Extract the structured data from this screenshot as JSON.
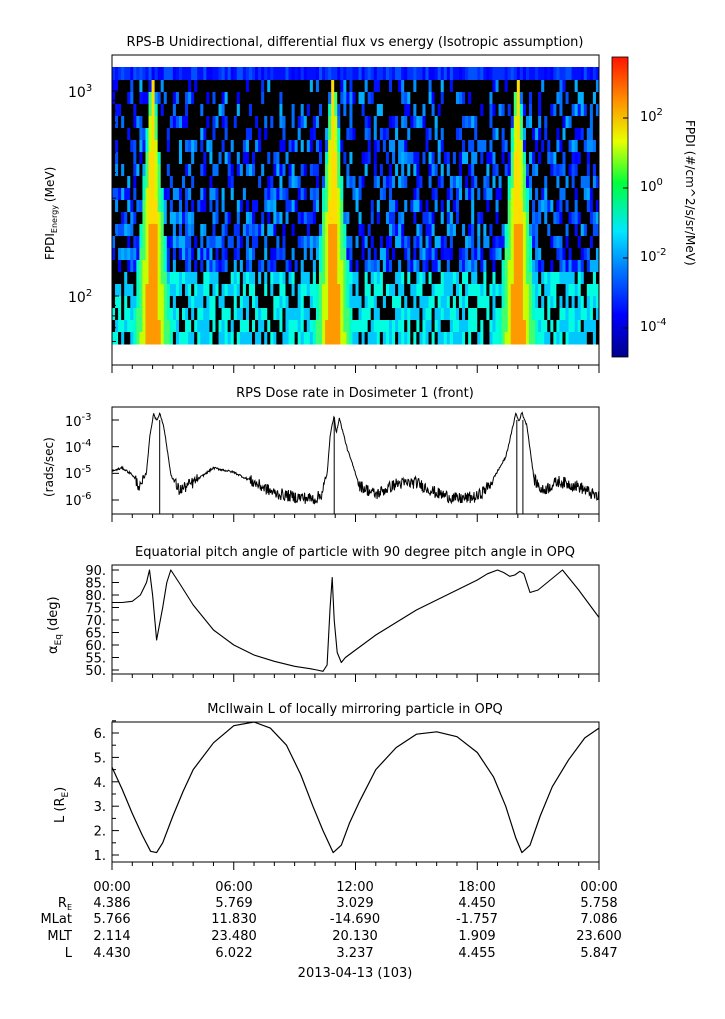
{
  "chart_data": [
    {
      "type": "heatmap",
      "title": "RPS-B  Unidirectional, differential flux vs energy (Isotropic assumption)",
      "ylabel": "FPDI",
      "ylabel_sub": "Energy",
      "ylabel_unit": "(MeV)",
      "yscale": "log",
      "ylim": [
        55,
        1400
      ],
      "y_ticks": [
        {
          "base": "10",
          "exp": "3",
          "value": 1000
        },
        {
          "base": "10",
          "exp": "2",
          "value": 100
        }
      ],
      "hot_bands_hours": [
        2.0,
        10.9,
        20.0
      ],
      "colorbar": {
        "label": "FPDI (#/cm^2/s/sr/MeV)",
        "scale": "log",
        "range": [
          1e-05,
          2000
        ],
        "ticks": [
          {
            "base": "10",
            "exp": "2"
          },
          {
            "base": "10",
            "exp": "0"
          },
          {
            "base": "10",
            "exp": "-2"
          },
          {
            "base": "10",
            "exp": "-4"
          }
        ],
        "colors": [
          "#0000a0",
          "#0000ff",
          "#0088ff",
          "#00ffff",
          "#00ff44",
          "#ffff00",
          "#ff8800",
          "#ff0000"
        ]
      }
    },
    {
      "type": "line",
      "title": "RPS  Dose rate in Dosimeter 1 (front)",
      "ylabel": "(rads/sec)",
      "yscale": "log",
      "ylim": [
        5e-07,
        0.002
      ],
      "y_ticks": [
        {
          "base": "10",
          "exp": "-3"
        },
        {
          "base": "10",
          "exp": "-4"
        },
        {
          "base": "10",
          "exp": "-5"
        },
        {
          "base": "10",
          "exp": "-6"
        }
      ],
      "x_hours": [
        0,
        0.5,
        1.0,
        1.4,
        1.7,
        1.85,
        2.05,
        2.2,
        2.35,
        2.55,
        2.9,
        3.3,
        4.0,
        5.0,
        6.0,
        7.0,
        8.0,
        9.0,
        9.5,
        10.0,
        10.3,
        10.6,
        10.75,
        10.95,
        11.05,
        11.2,
        11.6,
        12.2,
        13.0,
        14.0,
        15.0,
        16.0,
        17.0,
        18.0,
        18.6,
        19.0,
        19.4,
        19.65,
        19.9,
        20.05,
        20.2,
        20.45,
        20.8,
        21.2,
        22.0,
        23.0,
        24.0
      ],
      "values": [
        1.2e-05,
        1.6e-05,
        9e-06,
        2.8e-06,
        1.1e-05,
        0.0002,
        0.0018,
        0.0009,
        0.0018,
        0.0006,
        9e-06,
        2.3e-06,
        4.5e-06,
        1.6e-05,
        1.1e-05,
        4.5e-06,
        1.8e-06,
        1.3e-06,
        1.2e-06,
        1.1e-06,
        1.5e-06,
        9e-06,
        0.00025,
        0.0016,
        0.0003,
        0.0012,
        8e-05,
        3.5e-06,
        1.6e-06,
        4e-06,
        4.5e-06,
        1.8e-06,
        1.1e-06,
        1.3e-06,
        3.5e-06,
        1.2e-05,
        4e-05,
        0.00025,
        0.0018,
        0.0009,
        0.0019,
        0.0006,
        6e-06,
        2.2e-06,
        5e-06,
        3.2e-06,
        1.2e-06
      ],
      "dropouts_hours": [
        2.35,
        10.95,
        19.95,
        20.25
      ]
    },
    {
      "type": "line",
      "title": "Equatorial pitch angle of particle with 90 degree pitch angle in OPQ",
      "ylabel": "α",
      "ylabel_sub": "Eq",
      "ylabel_unit": "(deg)",
      "ylim": [
        49,
        91.5
      ],
      "y_ticks": [
        "90.",
        "85.",
        "80.",
        "75.",
        "70.",
        "65.",
        "60.",
        "55.",
        "50."
      ],
      "x_hours": [
        0,
        0.5,
        1.0,
        1.4,
        1.7,
        1.85,
        2.0,
        2.2,
        2.5,
        2.7,
        2.9,
        3.3,
        4.0,
        5.0,
        6.0,
        7.0,
        8.0,
        9.0,
        9.8,
        10.1,
        10.4,
        10.6,
        10.75,
        10.85,
        10.95,
        11.1,
        11.3,
        11.5,
        12.0,
        13.0,
        14.0,
        15.0,
        16.0,
        17.0,
        18.0,
        18.5,
        19.0,
        19.3,
        19.6,
        19.85,
        20.1,
        20.3,
        20.6,
        21.0,
        21.6,
        22.2,
        23.0,
        24.0
      ],
      "values": [
        77.0,
        77.0,
        77.5,
        80.0,
        85.0,
        90.0,
        80.0,
        62.0,
        75.0,
        85.0,
        90.0,
        85.0,
        76.0,
        66.0,
        60.0,
        56.0,
        53.5,
        51.5,
        50.5,
        50.0,
        49.5,
        52.0,
        75.0,
        87.0,
        70.0,
        57.0,
        53.0,
        55.0,
        58.0,
        64.0,
        69.0,
        74.0,
        78.0,
        82.0,
        86.0,
        88.5,
        90.0,
        89.0,
        87.5,
        88.0,
        89.5,
        88.5,
        81.0,
        82.0,
        86.0,
        90.0,
        82.0,
        71.0
      ]
    },
    {
      "type": "line",
      "title": "McIlwain L of locally mirroring particle in OPQ",
      "ylabel": "L (R",
      "ylabel_sub": "E",
      "ylabel_unit": ")",
      "ylim": [
        0.7,
        6.7
      ],
      "y_ticks": [
        "6.",
        "5.",
        "4.",
        "3.",
        "2.",
        "1."
      ],
      "x_hours": [
        0,
        0.5,
        1.0,
        1.5,
        1.9,
        2.2,
        2.5,
        3.0,
        3.5,
        4.0,
        5.0,
        6.0,
        7.0,
        7.8,
        8.6,
        9.3,
        9.9,
        10.4,
        10.9,
        11.3,
        11.7,
        12.2,
        13.0,
        14.0,
        15.0,
        16.0,
        17.0,
        18.0,
        18.8,
        19.4,
        19.9,
        20.2,
        20.6,
        21.1,
        21.7,
        22.5,
        23.3,
        24.0
      ],
      "values": [
        4.6,
        3.7,
        2.7,
        1.8,
        1.15,
        1.1,
        1.5,
        2.6,
        3.6,
        4.5,
        5.6,
        6.3,
        6.45,
        6.2,
        5.5,
        4.3,
        3.0,
        2.0,
        1.1,
        1.4,
        2.3,
        3.2,
        4.5,
        5.4,
        5.95,
        6.05,
        5.85,
        5.2,
        4.2,
        3.0,
        1.7,
        1.1,
        1.4,
        2.6,
        3.8,
        4.9,
        5.8,
        6.2
      ]
    }
  ],
  "x_axis": {
    "ticks": [
      "00:00",
      "06:00",
      "12:00",
      "18:00",
      "00:00"
    ],
    "date_label": "2013-04-13 (103)"
  },
  "ephemeris": [
    {
      "label": "R",
      "label_sub": "E",
      "values": [
        "4.386",
        "5.769",
        "3.029",
        "4.450",
        "5.758"
      ]
    },
    {
      "label": "MLat",
      "label_sub": "",
      "values": [
        "5.766",
        "11.830",
        "-14.690",
        "-1.757",
        "7.086"
      ]
    },
    {
      "label": "MLT",
      "label_sub": "",
      "values": [
        "2.114",
        "23.480",
        "20.130",
        "1.909",
        "23.600"
      ]
    },
    {
      "label": "L",
      "label_sub": "",
      "values": [
        "4.430",
        "6.022",
        "3.237",
        "4.455",
        "5.847"
      ]
    }
  ]
}
